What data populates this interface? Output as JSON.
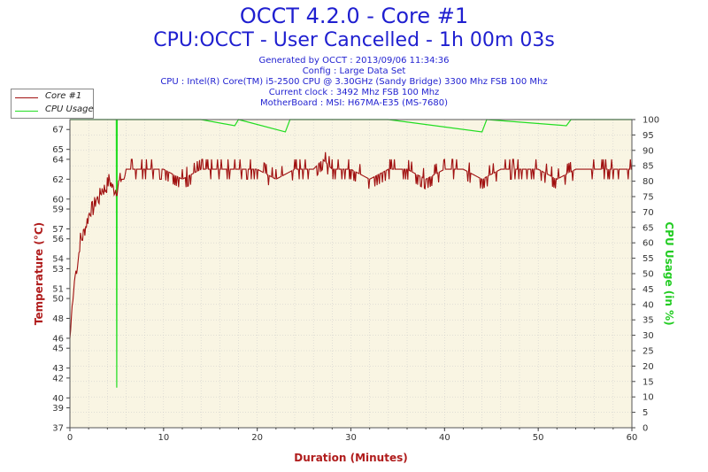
{
  "header": {
    "title": "OCCT 4.2.0 - Core #1",
    "subtitle": "CPU:OCCT - User Cancelled - 1h 00m 03s",
    "lines": [
      "Generated by OCCT : 2013/09/06 11:34:36",
      "Config : Large Data Set",
      "CPU : Intel(R) Core(TM) i5-2500 CPU @ 3.30GHz (Sandy Bridge) 3300 Mhz FSB 100 Mhz",
      "Current clock : 3492 Mhz FSB 100 Mhz",
      "MotherBoard : MSI: H67MA-E35 (MS-7680)"
    ]
  },
  "colors": {
    "temperature": "#a01010",
    "cpu_usage": "#22dd22",
    "plot_bg": "#f9f5e3",
    "grid": "#c8c8c8"
  },
  "chart_data": {
    "type": "line",
    "xlabel": "Duration (Minutes)",
    "ylabel_left": "Temperature (°C)",
    "ylabel_right": "CPU Usage (in %)",
    "xlim": [
      0,
      60
    ],
    "x_ticks": [
      0,
      10,
      20,
      30,
      40,
      50,
      60
    ],
    "ylim_left": [
      37,
      68
    ],
    "y_ticks_left": [
      37,
      39,
      40,
      42,
      43,
      45,
      46,
      48,
      50,
      51,
      53,
      54,
      56,
      57,
      59,
      60,
      62,
      64,
      65,
      67
    ],
    "ylim_right": [
      0,
      100
    ],
    "y_ticks_right": [
      0,
      5,
      10,
      15,
      20,
      25,
      30,
      35,
      40,
      45,
      50,
      55,
      60,
      65,
      70,
      75,
      80,
      85,
      90,
      95,
      100
    ],
    "legend_position": "top-left",
    "grid": true,
    "series": [
      {
        "name": "Core #1",
        "axis": "left",
        "points": [
          [
            0,
            46
          ],
          [
            0.1,
            47
          ],
          [
            0.2,
            49
          ],
          [
            0.35,
            50
          ],
          [
            0.5,
            52
          ],
          [
            0.7,
            53
          ],
          [
            0.9,
            54
          ],
          [
            1.1,
            56
          ],
          [
            1.3,
            56
          ],
          [
            1.6,
            57
          ],
          [
            1.9,
            58
          ],
          [
            2.2,
            59
          ],
          [
            2.5,
            59
          ],
          [
            2.8,
            60
          ],
          [
            3.1,
            60
          ],
          [
            3.4,
            61
          ],
          [
            3.8,
            61
          ],
          [
            4.2,
            62
          ],
          [
            4.6,
            61
          ],
          [
            5,
            61
          ],
          [
            5.4,
            62
          ],
          [
            5.8,
            62
          ],
          [
            6,
            63
          ],
          [
            8,
            63
          ],
          [
            10,
            63
          ],
          [
            12,
            62
          ],
          [
            14,
            63
          ],
          [
            16,
            63
          ],
          [
            18,
            63
          ],
          [
            20,
            63
          ],
          [
            22,
            62
          ],
          [
            24,
            63
          ],
          [
            26,
            63
          ],
          [
            27,
            64
          ],
          [
            28,
            63
          ],
          [
            30,
            63
          ],
          [
            32,
            62
          ],
          [
            34,
            63
          ],
          [
            36,
            63
          ],
          [
            38,
            62
          ],
          [
            40,
            63
          ],
          [
            42,
            63
          ],
          [
            44,
            62
          ],
          [
            46,
            63
          ],
          [
            48,
            63
          ],
          [
            50,
            63
          ],
          [
            52,
            62
          ],
          [
            54,
            63
          ],
          [
            56,
            63
          ],
          [
            58,
            63
          ],
          [
            60,
            63
          ]
        ]
      },
      {
        "name": "CPU Usage",
        "axis": "right",
        "points": [
          [
            0,
            100
          ],
          [
            4.95,
            100
          ],
          [
            5,
            13
          ],
          [
            5.05,
            100
          ],
          [
            14,
            100
          ],
          [
            17.6,
            98
          ],
          [
            18,
            100
          ],
          [
            23,
            96
          ],
          [
            23.5,
            100
          ],
          [
            28,
            100
          ],
          [
            34,
            100
          ],
          [
            44,
            96
          ],
          [
            44.5,
            100
          ],
          [
            53,
            98
          ],
          [
            53.5,
            100
          ],
          [
            60,
            100
          ]
        ]
      }
    ]
  }
}
